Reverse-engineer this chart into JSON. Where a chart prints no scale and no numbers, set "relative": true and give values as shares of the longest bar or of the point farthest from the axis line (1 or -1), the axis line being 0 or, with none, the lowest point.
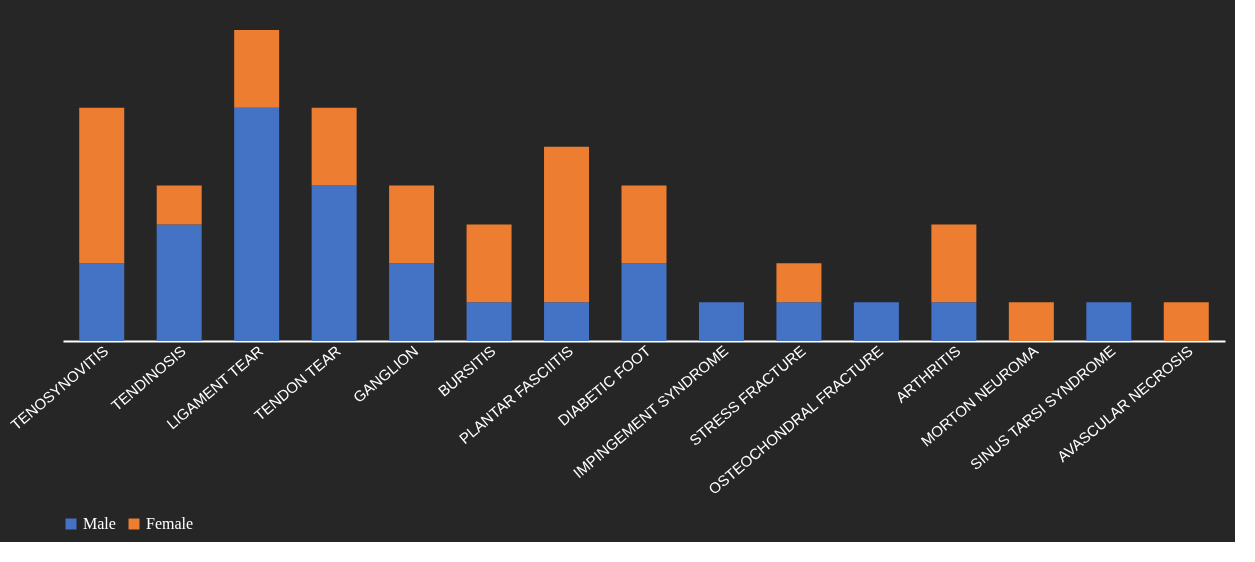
{
  "chart_data": {
    "type": "bar",
    "stacked": true,
    "relative": true,
    "legend": "bottom",
    "grid": false,
    "categories": [
      "TENOSYNOVITIS",
      "TENDINOSIS",
      "LIGAMENT TEAR",
      "TENDON TEAR",
      "GANGLION",
      "BURSITIS",
      "PLANTAR FASCIITIS",
      "DIABETIC FOOT",
      "IMPINGEMENT SYNDROME",
      "STRESS FRACTURE",
      "OSTEOCHONDRAL FRACTURE",
      "ARTHRITIS",
      "MORTON NEUROMA",
      "SINUS TARSI SYNDROME",
      "AVASCULAR NECROSIS"
    ],
    "series": [
      {
        "name": "Male",
        "color": "#4472c4",
        "values": [
          0.25,
          0.375,
          0.75,
          0.5,
          0.25,
          0.125,
          0.125,
          0.25,
          0.125,
          0.125,
          0.125,
          0.125,
          0,
          0.125,
          0
        ]
      },
      {
        "name": "Female",
        "color": "#ed7d31",
        "values": [
          0.5,
          0.125,
          0.25,
          0.25,
          0.25,
          0.25,
          0.5,
          0.25,
          0,
          0.125,
          0,
          0.25,
          0.125,
          0,
          0.125
        ]
      }
    ]
  }
}
